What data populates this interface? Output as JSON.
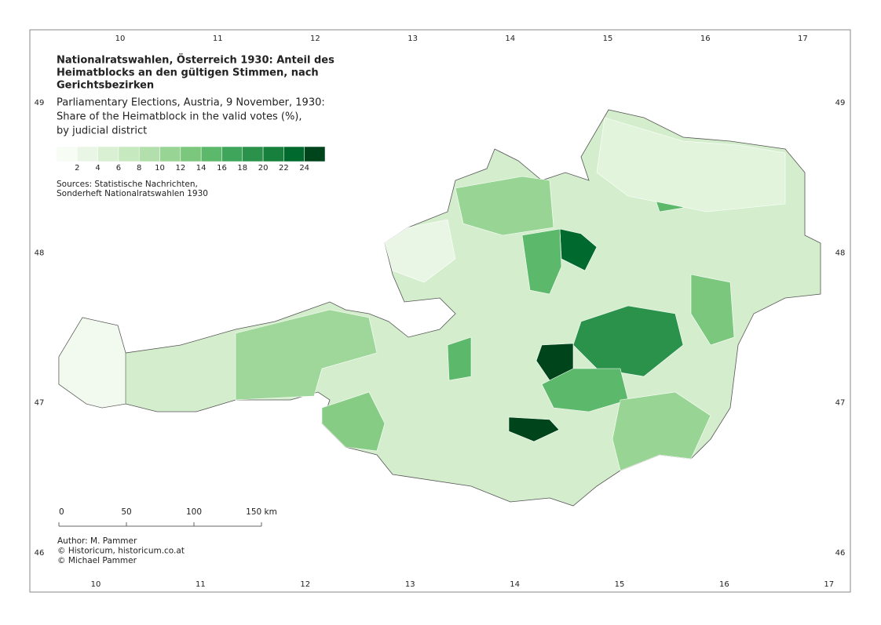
{
  "header": {
    "title": [
      "Nationalratswahlen, Österreich 1930: Anteil des",
      "Heimatblocks an den gültigen Stimmen, nach",
      "Gerichtsbezirken"
    ],
    "subtitle": [
      "Parliamentary Elections, Austria, 9 November, 1930:",
      "Share of the Heimatblock in the valid votes (%),",
      "by judicial district"
    ]
  },
  "legend": {
    "labels": [
      2,
      4,
      6,
      8,
      10,
      12,
      14,
      16,
      18,
      20,
      22,
      24
    ],
    "colors": [
      "#f7fcf5",
      "#eaf6e5",
      "#d9f0d3",
      "#c7e9c0",
      "#b2dfab",
      "#98d494",
      "#7bc77e",
      "#5cb86a",
      "#3fa55b",
      "#2a924b",
      "#17803c",
      "#006a2e",
      "#00441b"
    ]
  },
  "sources": [
    "Sources: Statistische Nachrichten,",
    "Sonderheft Nationalratswahlen 1930"
  ],
  "scale_bar": {
    "labels": [
      "0",
      "50",
      "100",
      "150 km"
    ]
  },
  "credits": [
    "Author: M. Pammer",
    "© Historicum, historicum.co.at",
    "© Michael Pammer"
  ],
  "frame": {
    "top_ticks": [
      10,
      11,
      12,
      13,
      14,
      15,
      16,
      17
    ],
    "bottom_ticks": [
      10,
      11,
      12,
      13,
      14,
      15,
      16,
      17
    ],
    "left_ticks": [
      49,
      48,
      47,
      46
    ],
    "right_ticks": [
      49,
      48,
      47,
      46
    ]
  }
}
